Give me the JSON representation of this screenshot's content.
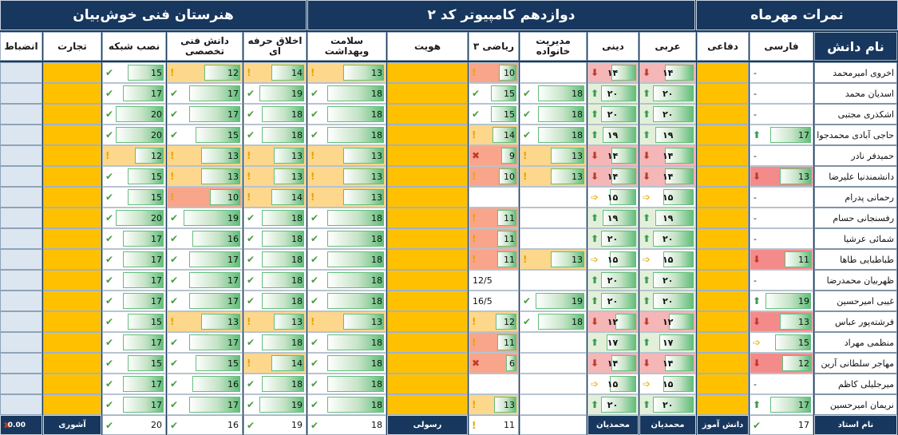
{
  "titles": {
    "school": "هنرستان فنی خوش‌بیان",
    "class": "دوازدهم کامپیوتر کد ۲",
    "month": "نمرات مهرماه"
  },
  "columns": [
    {
      "key": "name",
      "label": "نام دانش"
    },
    {
      "key": "farsi",
      "label": "فارسی"
    },
    {
      "key": "defai",
      "label": "دفاعی"
    },
    {
      "key": "arabi",
      "label": "عربی"
    },
    {
      "key": "dini",
      "label": "دینی"
    },
    {
      "key": "modiriat",
      "label": "مدیریت خانواده"
    },
    {
      "key": "riazi",
      "label": "ریاضی ۳"
    },
    {
      "key": "hoviat",
      "label": "هویت"
    },
    {
      "key": "salamat",
      "label": "سلامت وبهداشت"
    },
    {
      "key": "akhlagh",
      "label": "اخلاق حرفه ای"
    },
    {
      "key": "danesh",
      "label": "دانش فنی تخصصی"
    },
    {
      "key": "nasb",
      "label": "نصب شبکه"
    },
    {
      "key": "tejarat",
      "label": "تجارت"
    },
    {
      "key": "enzebat",
      "label": "انضباط"
    }
  ],
  "students": [
    {
      "name": "اخروی امیرمحمد",
      "farsi": "-",
      "arabi": "۱۴",
      "dini": "۱۴",
      "modiriat": "",
      "riazi": "10",
      "salamat": "13",
      "akhlagh": "14",
      "danesh": "12",
      "nasb": "15"
    },
    {
      "name": "اسدیان محمد",
      "farsi": "-",
      "arabi": "۲۰",
      "dini": "۲۰",
      "modiriat": "18",
      "riazi": "15",
      "salamat": "18",
      "akhlagh": "19",
      "danesh": "17",
      "nasb": "17"
    },
    {
      "name": "اشکذری مجتبی",
      "farsi": "-",
      "arabi": "۲۰",
      "dini": "۲۰",
      "modiriat": "18",
      "riazi": "15",
      "salamat": "18",
      "akhlagh": "18",
      "danesh": "17",
      "nasb": "20"
    },
    {
      "name": "حاجی آبادی محمدجوا",
      "farsi": "17",
      "arabi": "۱۹",
      "dini": "۱۹",
      "modiriat": "18",
      "riazi": "14",
      "salamat": "18",
      "akhlagh": "18",
      "danesh": "15",
      "nasb": "20"
    },
    {
      "name": "حمیدفر نادر",
      "farsi": "-",
      "arabi": "۱۴",
      "dini": "۱۴",
      "modiriat": "13",
      "riazi": "9",
      "salamat": "13",
      "akhlagh": "13",
      "danesh": "13",
      "nasb": "12"
    },
    {
      "name": "دانشمندنیا علیرضا",
      "farsi": "13",
      "arabi": "۱۴",
      "dini": "۱۴",
      "modiriat": "13",
      "riazi": "10",
      "salamat": "13",
      "akhlagh": "13",
      "danesh": "13",
      "nasb": "15"
    },
    {
      "name": "رحمانی پدرام",
      "farsi": "-",
      "arabi": "۱۵",
      "dini": "۱۵",
      "modiriat": "",
      "riazi": "",
      "salamat": "13",
      "akhlagh": "14",
      "danesh": "10",
      "nasb": "15"
    },
    {
      "name": "رفسنجانی حسام",
      "farsi": "-",
      "arabi": "۱۹",
      "dini": "۱۹",
      "modiriat": "",
      "riazi": "11",
      "salamat": "18",
      "akhlagh": "18",
      "danesh": "19",
      "nasb": "20"
    },
    {
      "name": "شمائی عرشیا",
      "farsi": "-",
      "arabi": "۲۰",
      "dini": "۲۰",
      "modiriat": "",
      "riazi": "11",
      "salamat": "18",
      "akhlagh": "18",
      "danesh": "16",
      "nasb": "17"
    },
    {
      "name": "طباطبایی طاها",
      "farsi": "11",
      "arabi": "۱۵",
      "dini": "۱۵",
      "modiriat": "13",
      "riazi": "11",
      "salamat": "18",
      "akhlagh": "18",
      "danesh": "17",
      "nasb": "17"
    },
    {
      "name": "ظهربیان محمدرضا",
      "farsi": "-",
      "arabi": "۲۰",
      "dini": "۲۰",
      "modiriat": "",
      "riazi": "12/5",
      "salamat": "18",
      "akhlagh": "18",
      "danesh": "17",
      "nasb": "17"
    },
    {
      "name": "غیبی امیرحسین",
      "farsi": "19",
      "arabi": "۲۰",
      "dini": "۲۰",
      "modiriat": "19",
      "riazi": "16/5",
      "salamat": "18",
      "akhlagh": "18",
      "danesh": "17",
      "nasb": "17"
    },
    {
      "name": "فرشته‌پور عباس",
      "farsi": "13",
      "arabi": "۱۲",
      "dini": "۱۲",
      "modiriat": "18",
      "riazi": "12",
      "salamat": "13",
      "akhlagh": "13",
      "danesh": "13",
      "nasb": "15"
    },
    {
      "name": "منظمی مهراد",
      "farsi": "15",
      "arabi": "۱۷",
      "dini": "۱۷",
      "modiriat": "",
      "riazi": "11",
      "salamat": "18",
      "akhlagh": "18",
      "danesh": "17",
      "nasb": "17"
    },
    {
      "name": "مهاجر سلطانی آرین",
      "farsi": "12",
      "arabi": "۱۴",
      "dini": "۱۴",
      "modiriat": "",
      "riazi": "6",
      "salamat": "18",
      "akhlagh": "14",
      "danesh": "15",
      "nasb": "15"
    },
    {
      "name": "میرجلیلی کاظم",
      "farsi": "-",
      "arabi": "۱۵",
      "dini": "۱۵",
      "modiriat": "",
      "riazi": "",
      "salamat": "18",
      "akhlagh": "18",
      "danesh": "16",
      "nasb": "17"
    },
    {
      "name": "نریمان امیرحسین",
      "farsi": "17",
      "arabi": "۲۰",
      "dini": "۲۰",
      "modiriat": "",
      "riazi": "13",
      "salamat": "18",
      "akhlagh": "19",
      "danesh": "17",
      "nasb": "17"
    }
  ],
  "footer": {
    "label": "نام استاد",
    "farsi": "17",
    "defai": "دانش آموز",
    "arabi": "محمدیان",
    "dini": "محمدیان",
    "riazi": "11",
    "hoviat": "رسولی",
    "salamat": "18",
    "akhlagh": "19",
    "danesh": "16",
    "nasb": "20",
    "tejarat": "آشوری",
    "enzebat": "0.00"
  }
}
